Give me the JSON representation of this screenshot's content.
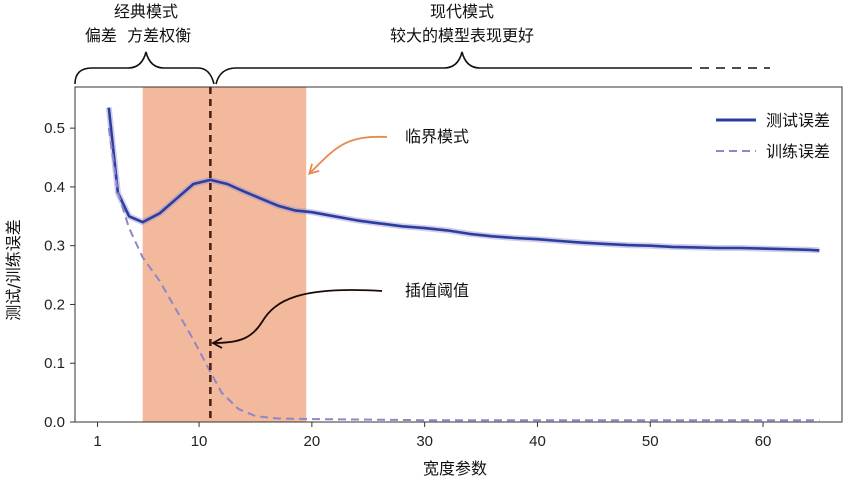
{
  "chart_data": {
    "type": "line",
    "xlabel": "宽度参数",
    "ylabel": "测试/训练误差",
    "xlim": [
      -1,
      67
    ],
    "ylim": [
      0,
      0.57
    ],
    "xticks": [
      1,
      10,
      20,
      30,
      40,
      50,
      60
    ],
    "yticks": [
      0.0,
      0.1,
      0.2,
      0.3,
      0.4,
      0.5
    ],
    "ytick_labels": [
      "0.0",
      "0.1",
      "0.2",
      "0.3",
      "0.4",
      "0.5"
    ],
    "legend_position": "top-right",
    "critical_region": [
      5,
      19.5
    ],
    "interpolation_threshold": 11,
    "series": [
      {
        "name": "测试误差",
        "color": "#2a3f9d",
        "style": "solid",
        "x": [
          2,
          2.8,
          3.8,
          5,
          6.5,
          8,
          9.5,
          11,
          12.5,
          14,
          15.5,
          17,
          18.5,
          20,
          22,
          24,
          26,
          28,
          30,
          32,
          34,
          36,
          38,
          40,
          42,
          44,
          46,
          48,
          50,
          52,
          54,
          56,
          58,
          60,
          62,
          64,
          65
        ],
        "y": [
          0.535,
          0.39,
          0.35,
          0.34,
          0.355,
          0.38,
          0.405,
          0.412,
          0.405,
          0.392,
          0.38,
          0.368,
          0.36,
          0.357,
          0.35,
          0.343,
          0.338,
          0.333,
          0.33,
          0.326,
          0.32,
          0.316,
          0.313,
          0.311,
          0.308,
          0.305,
          0.303,
          0.301,
          0.3,
          0.298,
          0.297,
          0.296,
          0.296,
          0.295,
          0.294,
          0.293,
          0.292
        ]
      },
      {
        "name": "训练误差",
        "color": "#8f86c8",
        "style": "dashed",
        "x": [
          2,
          2.8,
          3.8,
          5,
          6.5,
          8,
          9.5,
          11,
          12,
          13.5,
          15,
          17,
          20,
          25,
          30,
          40,
          50,
          60,
          65
        ],
        "y": [
          0.5,
          0.39,
          0.33,
          0.28,
          0.24,
          0.19,
          0.14,
          0.085,
          0.05,
          0.022,
          0.01,
          0.006,
          0.005,
          0.004,
          0.003,
          0.003,
          0.003,
          0.003,
          0.003
        ]
      }
    ],
    "annotations": {
      "classical_title": "经典模式",
      "classical_sub": "偏差  方差权衡",
      "modern_title": "现代模式",
      "modern_sub": "较大的模型表现更好",
      "critical_label": "临界模式",
      "threshold_label": "插值阈值"
    },
    "colors": {
      "critical_fill": "#f2b99c",
      "critical_arrow": "#e8894f",
      "threshold_line": "#4a2218",
      "threshold_arrow": "#1a0a05"
    }
  }
}
